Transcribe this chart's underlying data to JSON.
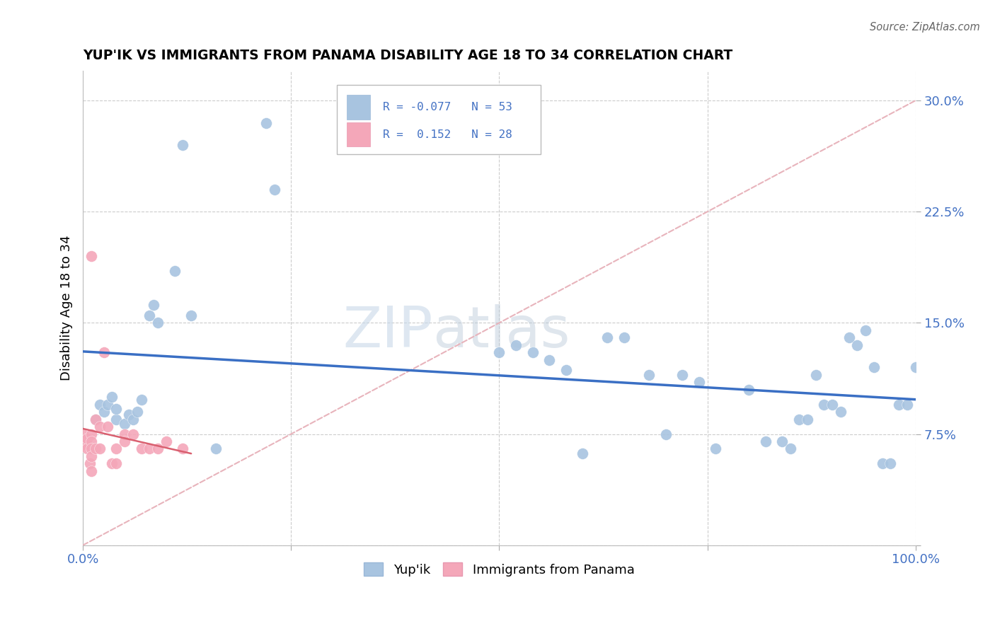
{
  "title": "YUP'IK VS IMMIGRANTS FROM PANAMA DISABILITY AGE 18 TO 34 CORRELATION CHART",
  "source": "Source: ZipAtlas.com",
  "ylabel": "Disability Age 18 to 34",
  "xlim": [
    0.0,
    1.0
  ],
  "ylim": [
    0.0,
    0.32
  ],
  "legend_r_blue": "-0.077",
  "legend_n_blue": "53",
  "legend_r_pink": "0.152",
  "legend_n_pink": "28",
  "blue_color": "#a8c4e0",
  "pink_color": "#f4a7b9",
  "trendline_blue_color": "#3a6fc4",
  "trendline_pink_color": "#d96070",
  "diagonal_color": "#e8b4bc",
  "label_color": "#4472c4",
  "watermark_color": "#dde8f0",
  "blue_x": [
    0.015,
    0.02,
    0.025,
    0.03,
    0.035,
    0.04,
    0.04,
    0.05,
    0.055,
    0.06,
    0.065,
    0.07,
    0.08,
    0.085,
    0.09,
    0.11,
    0.12,
    0.13,
    0.16,
    0.22,
    0.23,
    0.5,
    0.52,
    0.54,
    0.56,
    0.58,
    0.6,
    0.63,
    0.65,
    0.68,
    0.7,
    0.72,
    0.74,
    0.76,
    0.8,
    0.82,
    0.84,
    0.85,
    0.86,
    0.87,
    0.88,
    0.89,
    0.9,
    0.91,
    0.92,
    0.93,
    0.94,
    0.95,
    0.96,
    0.97,
    0.98,
    0.99,
    1.0
  ],
  "blue_y": [
    0.085,
    0.095,
    0.09,
    0.095,
    0.1,
    0.085,
    0.092,
    0.082,
    0.088,
    0.085,
    0.09,
    0.098,
    0.155,
    0.162,
    0.15,
    0.185,
    0.27,
    0.155,
    0.065,
    0.285,
    0.24,
    0.13,
    0.135,
    0.13,
    0.125,
    0.118,
    0.062,
    0.14,
    0.14,
    0.115,
    0.075,
    0.115,
    0.11,
    0.065,
    0.105,
    0.07,
    0.07,
    0.065,
    0.085,
    0.085,
    0.115,
    0.095,
    0.095,
    0.09,
    0.14,
    0.135,
    0.145,
    0.12,
    0.055,
    0.055,
    0.095,
    0.095,
    0.12
  ],
  "pink_x": [
    0.0,
    0.0,
    0.005,
    0.005,
    0.008,
    0.01,
    0.01,
    0.01,
    0.01,
    0.01,
    0.01,
    0.015,
    0.015,
    0.02,
    0.02,
    0.025,
    0.03,
    0.035,
    0.04,
    0.04,
    0.05,
    0.05,
    0.06,
    0.07,
    0.08,
    0.09,
    0.1,
    0.12
  ],
  "pink_y": [
    0.075,
    0.068,
    0.072,
    0.065,
    0.055,
    0.195,
    0.075,
    0.07,
    0.065,
    0.06,
    0.05,
    0.085,
    0.065,
    0.08,
    0.065,
    0.13,
    0.08,
    0.055,
    0.065,
    0.055,
    0.075,
    0.07,
    0.075,
    0.065,
    0.065,
    0.065,
    0.07,
    0.065
  ]
}
